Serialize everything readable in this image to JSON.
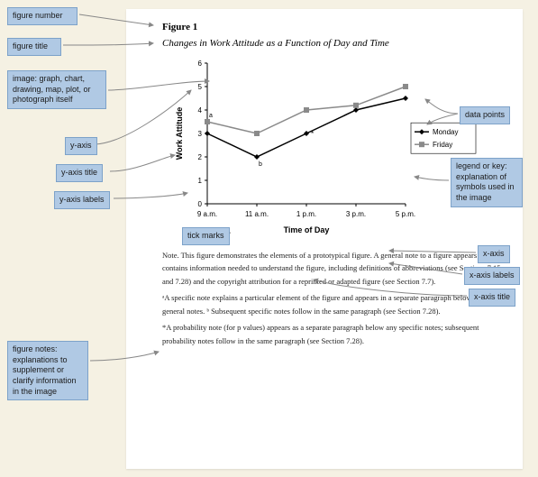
{
  "figure": {
    "number_label": "Figure 1",
    "title": "Changes in Work Attitude as a Function of Day and Time"
  },
  "chart": {
    "type": "line",
    "x_axis_title": "Time of Day",
    "y_axis_title": "Work Attitude",
    "x_labels": [
      "9 a.m.",
      "11 a.m.",
      "1 p.m.",
      "3 p.m.",
      "5 p.m."
    ],
    "y_ticks": [
      0,
      1,
      2,
      3,
      4,
      5,
      6
    ],
    "ylim": [
      0,
      6
    ],
    "series": [
      {
        "name": "Monday",
        "color": "#000000",
        "marker": "diamond",
        "values": [
          3.0,
          2.0,
          3.0,
          4.0,
          4.5
        ]
      },
      {
        "name": "Friday",
        "color": "#8a8a8a",
        "marker": "square",
        "values": [
          3.5,
          3.0,
          4.0,
          4.2,
          5.0
        ]
      }
    ],
    "annotations": {
      "a_label": "a",
      "b_label": "b",
      "asterisk": "*"
    },
    "background": "#ffffff",
    "axis_color": "#000000",
    "label_fontsize": 8,
    "title_fontsize": 9
  },
  "notes": {
    "general": "Note. This figure demonstrates the elements of a prototypical figure. A general note to a figure appears first and contains information needed to understand the figure, including definitions of abbreviations (see Sections 7.15 and 7.28) and the copyright attribution for a reprinted or adapted figure (see Section 7.7).",
    "specific": "ᵃA specific note explains a particular element of the figure and appears in a separate paragraph below any general notes. ᵇ Subsequent specific notes follow in the same paragraph (see Section 7.28).",
    "probability": "*A probability note (for p values) appears as a separate paragraph below any specific notes; subsequent probability notes follow in the same paragraph (see Section 7.28)."
  },
  "callouts": {
    "figure_number": "figure number",
    "figure_title": "figure title",
    "image_desc": "image: graph, chart, drawing, map, plot, or photograph itself",
    "y_axis": "y-axis",
    "y_axis_title": "y-axis title",
    "y_axis_labels": "y-axis labels",
    "tick_marks": "tick marks",
    "data_points": "data points",
    "legend": "legend or key: explanation of symbols used in the image",
    "x_axis": "x-axis",
    "x_axis_labels": "x-axis labels",
    "x_axis_title": "x-axis title",
    "figure_notes": "figure notes: explanations to supplement or clarify information in the image"
  },
  "callout_style": {
    "bg": "#b0c9e4",
    "border": "#7da2c9"
  }
}
